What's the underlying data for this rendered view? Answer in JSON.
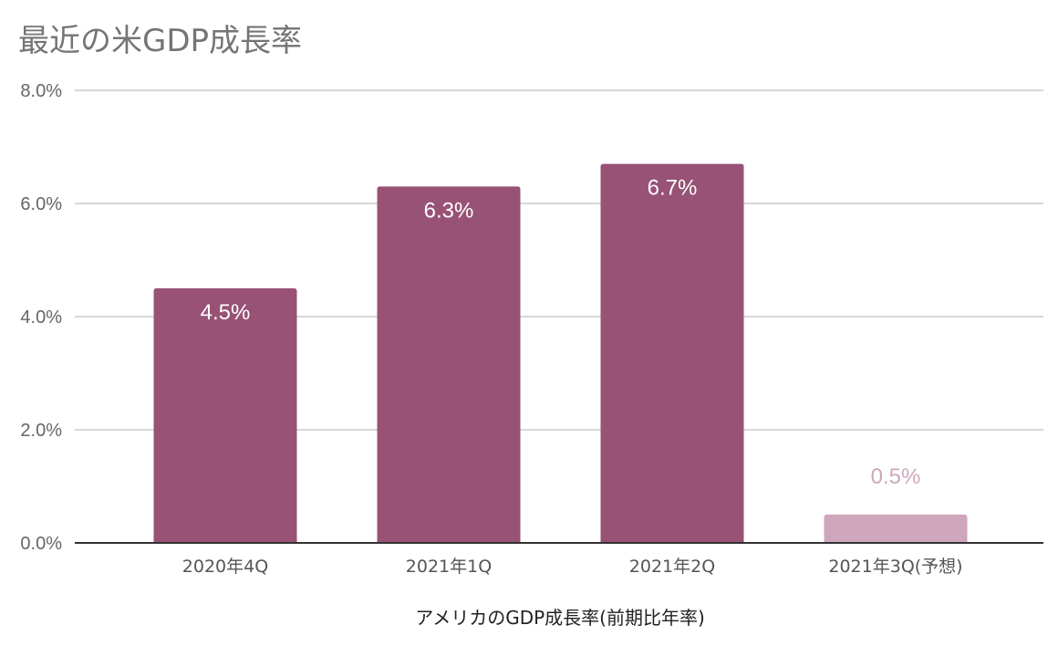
{
  "chart_data": {
    "type": "bar",
    "title": "最近の米GDP成長率",
    "xlabel": "アメリカのGDP成長率(前期比年率)",
    "ylabel": "",
    "categories": [
      "2020年4Q",
      "2021年1Q",
      "2021年2Q",
      "2021年3Q(予想)"
    ],
    "values": [
      4.5,
      6.3,
      6.7,
      0.5
    ],
    "data_labels": [
      "4.5%",
      "6.3%",
      "6.7%",
      "0.5%"
    ],
    "ylim": [
      0,
      8
    ],
    "yticks": [
      {
        "value": 0,
        "label": "0.0%"
      },
      {
        "value": 2,
        "label": "2.0%"
      },
      {
        "value": 4,
        "label": "4.0%"
      },
      {
        "value": 6,
        "label": "6.0%"
      },
      {
        "value": 8,
        "label": "8.0%"
      }
    ],
    "grid": true,
    "legend": "none",
    "colors": {
      "bar": "#985275",
      "bar_forecast": "#CFA7BC",
      "label_inside": "#ffffff",
      "label_forecast": "#CFA7BC",
      "grid": "#cccccc",
      "baseline": "#333333"
    }
  }
}
